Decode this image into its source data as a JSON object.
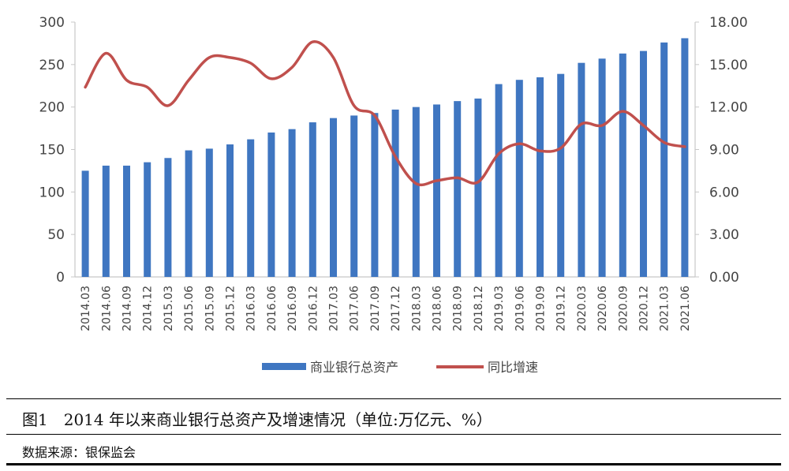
{
  "chart_data": {
    "type": "bar",
    "categories": [
      "2014.03",
      "2014.06",
      "2014.09",
      "2014.12",
      "2015.03",
      "2015.06",
      "2015.09",
      "2015.12",
      "2016.03",
      "2016.06",
      "2016.09",
      "2016.12",
      "2017.03",
      "2017.06",
      "2017.09",
      "2017.12",
      "2018.03",
      "2018.06",
      "2018.09",
      "2018.12",
      "2019.03",
      "2019.06",
      "2019.09",
      "2019.12",
      "2020.03",
      "2020.06",
      "2020.09",
      "2020.12",
      "2021.03",
      "2021.06"
    ],
    "series": [
      {
        "name": "商业银行总资产",
        "type": "bar",
        "axis": "left",
        "values": [
          125,
          131,
          131,
          135,
          140,
          149,
          151,
          156,
          162,
          170,
          174,
          182,
          187,
          190,
          193,
          197,
          200,
          203,
          207,
          210,
          227,
          232,
          235,
          239,
          252,
          257,
          263,
          266,
          276,
          281
        ],
        "color": "#3f76c1"
      },
      {
        "name": "同比增速",
        "type": "line",
        "axis": "right",
        "values": [
          13.4,
          15.8,
          13.9,
          13.4,
          12.1,
          13.9,
          15.5,
          15.5,
          15.1,
          14.0,
          14.8,
          16.6,
          15.5,
          12.1,
          11.4,
          8.5,
          6.6,
          6.8,
          7.0,
          6.7,
          8.7,
          9.4,
          8.9,
          9.1,
          10.8,
          10.7,
          11.7,
          10.7,
          9.5,
          9.2
        ],
        "color": "#c0504d"
      }
    ],
    "y_left": {
      "ticks": [
        "0",
        "50",
        "100",
        "150",
        "200",
        "250",
        "300"
      ],
      "lim": [
        0,
        300
      ]
    },
    "y_right": {
      "ticks": [
        "0.00",
        "3.00",
        "6.00",
        "9.00",
        "12.00",
        "15.00",
        "18.00"
      ],
      "lim": [
        0,
        18
      ]
    },
    "legend_position": "bottom",
    "grid": false
  },
  "caption": "图1　2014 年以来商业银行总资产及增速情况（单位:万亿元、%）",
  "source": "数据来源：银保监会"
}
